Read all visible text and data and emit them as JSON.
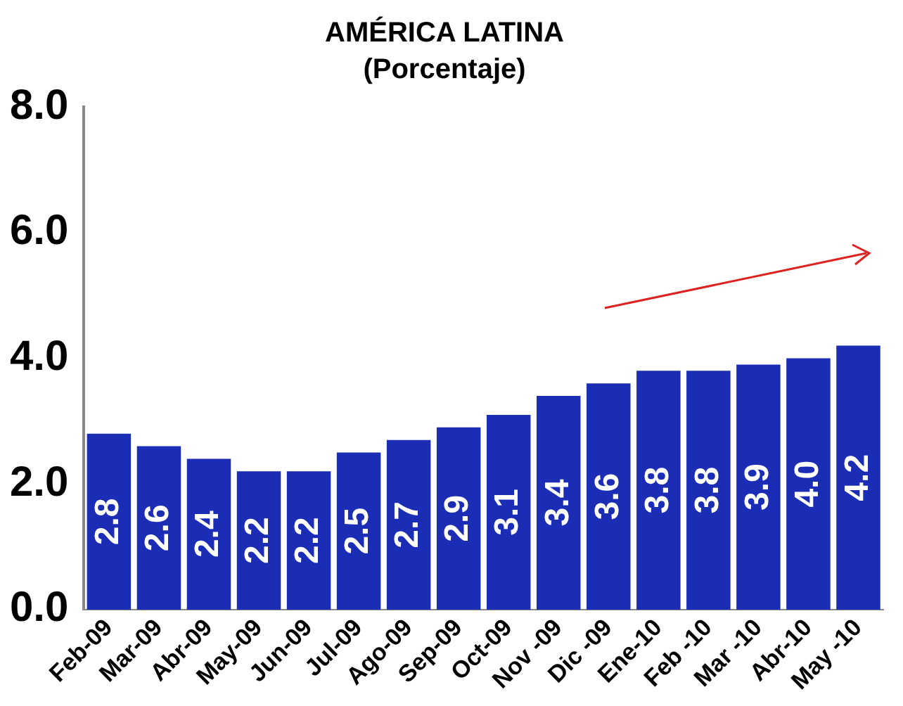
{
  "chart_data": {
    "type": "bar",
    "title": "AMÉRICA LATINA",
    "subtitle": "(Porcentaje)",
    "categories": [
      "Feb-09",
      "Mar-09",
      "Abr-09",
      "May-09",
      "Jun-09",
      "Jul-09",
      "Ago-09",
      "Sep-09",
      "Oct-09",
      "Nov -09",
      "Dic -09",
      "Ene-10",
      "Feb -10",
      "Mar -10",
      "Abr-10",
      "May -10"
    ],
    "values": [
      2.8,
      2.6,
      2.4,
      2.2,
      2.2,
      2.5,
      2.7,
      2.9,
      3.1,
      3.4,
      3.6,
      3.8,
      3.8,
      3.9,
      4.0,
      4.2
    ],
    "value_labels": [
      "2.8",
      "2.6",
      "2.4",
      "2.2",
      "2.2",
      "2.5",
      "2.7",
      "2.9",
      "3.1",
      "3.4",
      "3.6",
      "3.8",
      "3.8",
      "3.9",
      "4.0",
      "4.2"
    ],
    "color": "#1a2db4",
    "ylim": [
      0,
      8
    ],
    "yticks": [
      {
        "value": 0,
        "label": "0.0"
      },
      {
        "value": 2,
        "label": "2.0"
      },
      {
        "value": 4,
        "label": "4.0"
      },
      {
        "value": 6,
        "label": "6.0"
      },
      {
        "value": 8,
        "label": "8.0"
      }
    ],
    "grid": false,
    "legend": false
  }
}
